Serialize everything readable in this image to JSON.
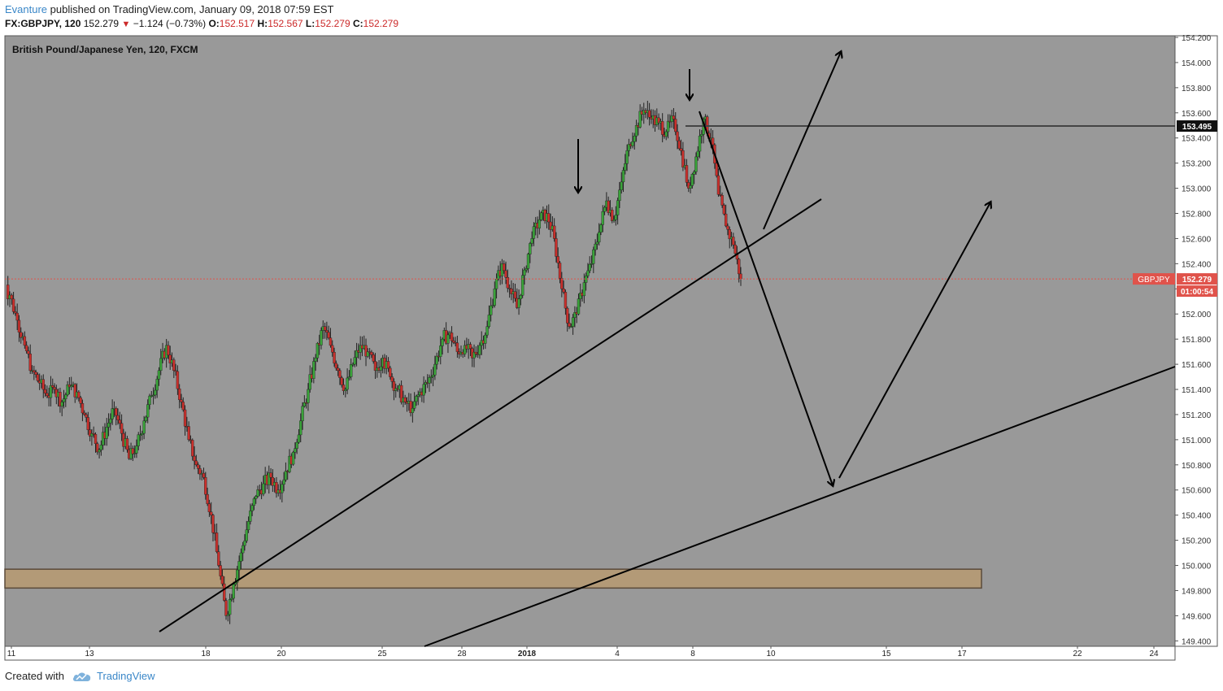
{
  "header": {
    "author": "Evanture",
    "published_text": "published on TradingView.com, January 09, 2018 07:59 EST",
    "symbol": "FX:GBPJPY, 120",
    "last": "152.279",
    "change_arrow": "▼",
    "change": "−1.124 (−0.73%)",
    "o_label": "O:",
    "o_value": "152.517",
    "h_label": "H:",
    "h_value": "152.567",
    "l_label": "L:",
    "l_value": "152.279",
    "c_label": "C:",
    "c_value": "152.279"
  },
  "footer": {
    "created_with": "Created with",
    "brand": "TradingView"
  },
  "colors": {
    "plot_bg": "#999999",
    "up": "#3aa33a",
    "down": "#c9302c",
    "zone_fill": "#b39a77",
    "zone_border": "#5a4a3a",
    "price_label": "#e0534b"
  },
  "chart_data": {
    "type": "candlestick",
    "title": "British Pound/Japanese Yen, 120, FXCM",
    "y_range": [
      149.35,
      154.25
    ],
    "y_ticks": [
      "154.200",
      "154.000",
      "153.800",
      "153.600",
      "153.400",
      "153.200",
      "153.000",
      "152.800",
      "152.600",
      "152.400",
      "152.200",
      "152.000",
      "151.800",
      "151.600",
      "151.400",
      "151.200",
      "151.000",
      "150.800",
      "150.600",
      "150.400",
      "150.200",
      "150.000",
      "149.800",
      "149.600",
      "149.400"
    ],
    "x_ticks": [
      "11",
      "13",
      "18",
      "20",
      "25",
      "28",
      "2018",
      "4",
      "8",
      "10",
      "15",
      "17",
      "22",
      "24"
    ],
    "current_price": {
      "symbol": "GBPJPY",
      "value": "152.279",
      "countdown": "01:00:54"
    },
    "resistance_level": {
      "value": "153.495"
    },
    "support_zone": {
      "low": 149.82,
      "high": 149.97
    },
    "closes": [
      152.15,
      151.95,
      151.75,
      151.55,
      151.45,
      151.35,
      151.4,
      151.3,
      151.42,
      151.38,
      151.2,
      151.05,
      150.92,
      151.1,
      151.25,
      151.05,
      150.85,
      150.95,
      151.15,
      151.35,
      151.55,
      151.75,
      151.55,
      151.3,
      151.0,
      150.8,
      150.7,
      150.4,
      150.0,
      149.6,
      149.85,
      150.1,
      150.35,
      150.55,
      150.65,
      150.7,
      150.6,
      150.75,
      150.9,
      151.15,
      151.4,
      151.65,
      151.9,
      151.75,
      151.55,
      151.4,
      151.6,
      151.75,
      151.7,
      151.55,
      151.65,
      151.5,
      151.4,
      151.3,
      151.25,
      151.38,
      151.45,
      151.6,
      151.8,
      151.85,
      151.7,
      151.75,
      151.65,
      151.75,
      151.9,
      152.2,
      152.4,
      152.2,
      152.05,
      152.35,
      152.6,
      152.75,
      152.8,
      152.6,
      152.2,
      151.9,
      152.0,
      152.25,
      152.4,
      152.65,
      152.9,
      152.75,
      153.05,
      153.35,
      153.5,
      153.62,
      153.55,
      153.52,
      153.45,
      153.55,
      153.3,
      153.0,
      153.25,
      153.55,
      153.4,
      152.95,
      152.7,
      152.55,
      152.28
    ],
    "annotations": {
      "down_arrows": [
        "peak-1",
        "peak-2"
      ],
      "rising_trendlines": 2,
      "projection_arrows": 3
    }
  }
}
